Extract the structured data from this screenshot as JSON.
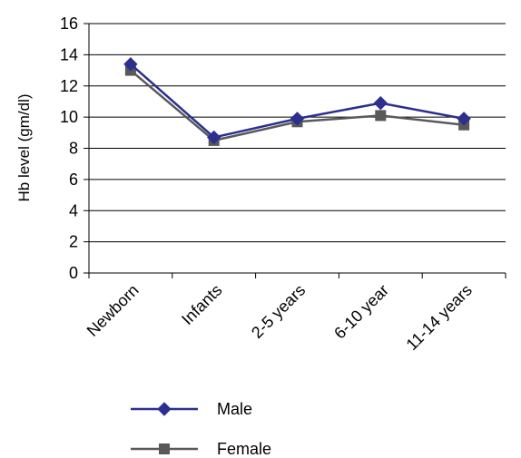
{
  "chart_data": {
    "type": "line",
    "title": "",
    "xlabel": "",
    "ylabel": "Hb level (gm/dl)",
    "categories": [
      "Newborn",
      "Infants",
      "2-5 years",
      "6-10 year",
      "11-14 years"
    ],
    "ylim": [
      0,
      16
    ],
    "yticks": [
      0,
      2,
      4,
      6,
      8,
      10,
      12,
      14,
      16
    ],
    "grid": true,
    "legend_position": "bottom",
    "series": [
      {
        "name": "Male",
        "values": [
          13.4,
          8.7,
          9.9,
          10.9,
          9.9
        ],
        "color": "#2b2f8f",
        "marker": "diamond"
      },
      {
        "name": "Female",
        "values": [
          13.0,
          8.5,
          9.7,
          10.1,
          9.5
        ],
        "color": "#595959",
        "marker": "square"
      }
    ]
  }
}
